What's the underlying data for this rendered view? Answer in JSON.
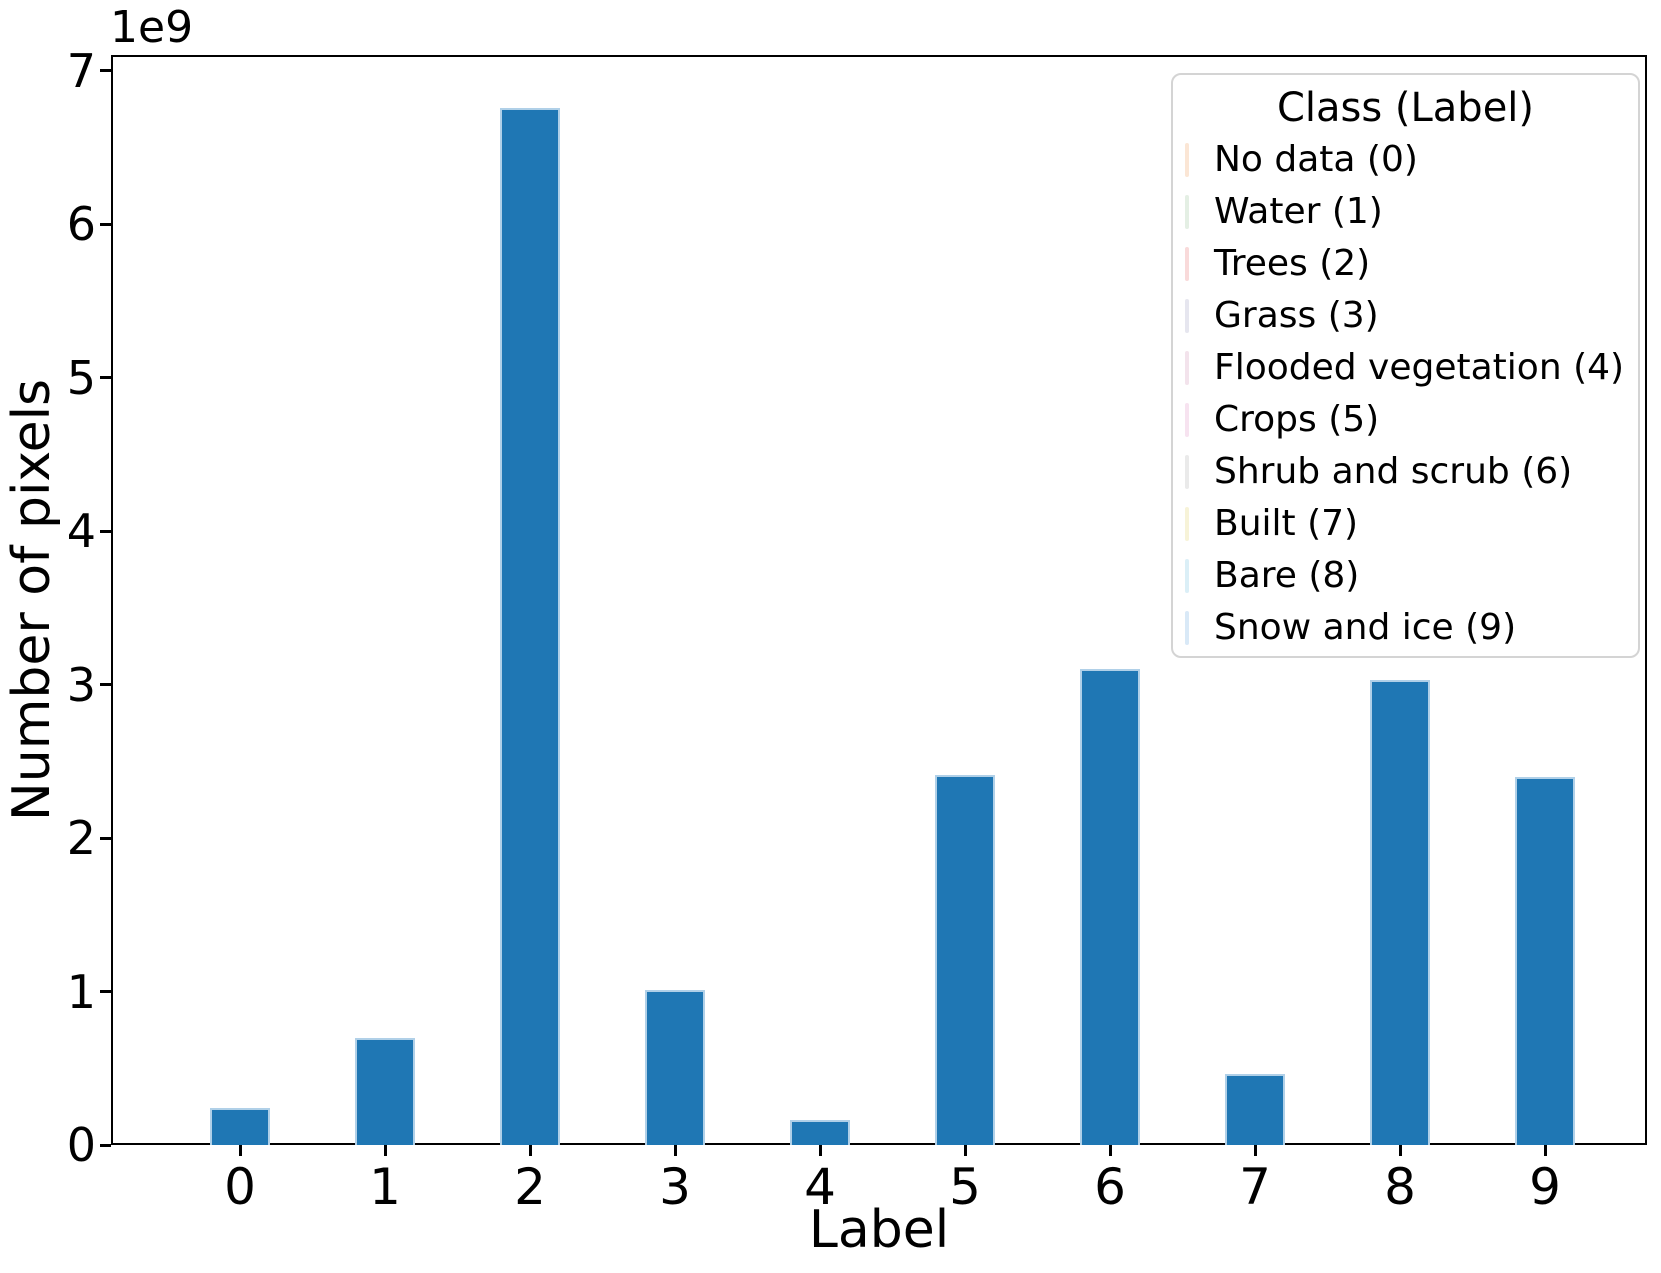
{
  "chart_data": {
    "type": "bar",
    "title": "",
    "xlabel": "Label",
    "ylabel": "Number of pixels",
    "offset_text": "1e9",
    "categories": [
      "0",
      "1",
      "2",
      "3",
      "4",
      "5",
      "6",
      "7",
      "8",
      "9"
    ],
    "values_1e9": [
      0.24,
      0.7,
      6.76,
      1.01,
      0.16,
      2.41,
      3.1,
      0.46,
      3.03,
      2.4
    ],
    "values": [
      240000000,
      700000000,
      6760000000,
      1010000000,
      160000000,
      2410000000,
      3100000000,
      460000000,
      3030000000,
      2400000000
    ],
    "ylim": [
      0,
      7.1
    ],
    "yticks": [
      "0",
      "1",
      "2",
      "3",
      "4",
      "5",
      "6",
      "7"
    ],
    "grid": false,
    "bar_color": "#1f77b4",
    "bar_edge_color": "#b0d0e8",
    "spine_color": "#000000",
    "legend": {
      "title": "Class (Label)",
      "position": "upper right",
      "entries": [
        {
          "label": "No data (0)",
          "marker_color": "#fbe6d5"
        },
        {
          "label": "Water (1)",
          "marker_color": "#e4efe4"
        },
        {
          "label": "Trees (2)",
          "marker_color": "#f9dada"
        },
        {
          "label": "Grass (3)",
          "marker_color": "#e6e6ef"
        },
        {
          "label": "Flooded vegetation (4)",
          "marker_color": "#f3e3ec"
        },
        {
          "label": "Crops (5)",
          "marker_color": "#f7e3f0"
        },
        {
          "label": "Shrub and scrub (6)",
          "marker_color": "#eaeaea"
        },
        {
          "label": "Built (7)",
          "marker_color": "#f7f3d8"
        },
        {
          "label": "Bare (8)",
          "marker_color": "#dbeff7"
        },
        {
          "label": "Snow and ice (9)",
          "marker_color": "#d9e9f7"
        }
      ]
    }
  }
}
